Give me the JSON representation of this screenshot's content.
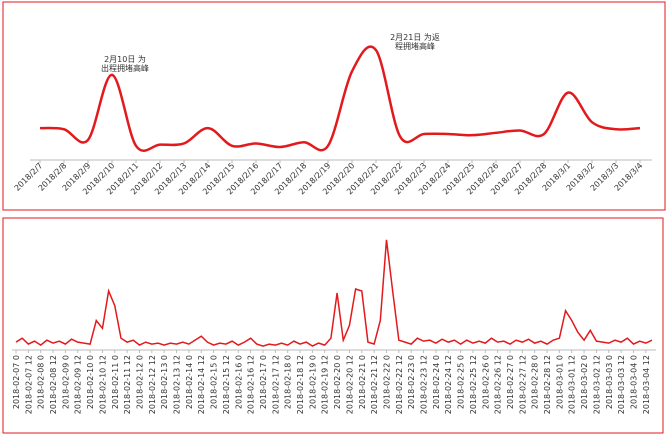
{
  "chart_data": [
    {
      "type": "line",
      "color": "#e31a1c",
      "categories": [
        "2018/2/7",
        "2018/2/8",
        "2018/2/9",
        "2018/2/10",
        "2018/2/11",
        "2018/2/12",
        "2018/2/13",
        "2018/2/14",
        "2018/2/15",
        "2018/2/16",
        "2018/2/17",
        "2018/2/18",
        "2018/2/19",
        "2018/2/20",
        "2018/2/21",
        "2018/2/22",
        "2018/2/23",
        "2018/2/24",
        "2018/2/25",
        "2018/2/26",
        "2018/2/27",
        "2018/2/28",
        "2018/3/1",
        "2018/3/2",
        "2018/3/3",
        "2018/3/4"
      ],
      "values": [
        27,
        26,
        17,
        72,
        12,
        13,
        14,
        27,
        12,
        14,
        11,
        15,
        12,
        75,
        93,
        20,
        22,
        22,
        21,
        23,
        25,
        22,
        57,
        32,
        26,
        27
      ],
      "ylim": [
        0,
        110
      ],
      "annotations": [
        {
          "lines": [
            "2月10日 为",
            "出程拥堵高峰"
          ]
        },
        {
          "lines": [
            "2月21日 为返",
            "程拥堵高峰"
          ]
        }
      ]
    },
    {
      "type": "line",
      "color": "#e31a1c",
      "categories": [
        "2018-02-07 0",
        null,
        "2018-02-07 12",
        null,
        "2018-02-08 0",
        null,
        "2018-02-08 12",
        null,
        "2018-02-09 0",
        null,
        "2018-02-09 12",
        null,
        "2018-02-10 0",
        null,
        "2018-02-10 12",
        null,
        "2018-02-11 0",
        null,
        "2018-02-11 12",
        null,
        "2018-02-12 0",
        null,
        "2018-02-12 12",
        null,
        "2018-02-13 0",
        null,
        "2018-02-13 12",
        null,
        "2018-02-14 0",
        null,
        "2018-02-14 12",
        null,
        "2018-02-15 0",
        null,
        "2018-02-15 12",
        null,
        "2018-02-16 0",
        null,
        "2018-02-16 12",
        null,
        "2018-02-17 0",
        null,
        "2018-02-17 12",
        null,
        "2018-02-18 0",
        null,
        "2018-02-18 12",
        null,
        "2018-02-19 0",
        null,
        "2018-02-19 12",
        null,
        "2018-02-20 0",
        null,
        "2018-02-20 12",
        null,
        "2018-02-21 0",
        null,
        "2018-02-21 12",
        null,
        "2018-02-22 0",
        null,
        "2018-02-22 12",
        null,
        "2018-02-23 0",
        null,
        "2018-02-23 12",
        null,
        "2018-02-24 0",
        null,
        "2018-02-24 12",
        null,
        "2018-02-25 0",
        null,
        "2018-02-25 12",
        null,
        "2018-02-26 0",
        null,
        "2018-02-26 12",
        null,
        "2018-02-27 0",
        null,
        "2018-02-27 12",
        null,
        "2018-02-28 0",
        null,
        "2018-02-28 12",
        null,
        "2018-03-01 0",
        null,
        "2018-03-01 12",
        null,
        "2018-03-02 0",
        null,
        "2018-03-02 12",
        null,
        "2018-03-03 0",
        null,
        "2018-03-03 12",
        null,
        "2018-03-04 0",
        null,
        "2018-03-04 12",
        null
      ],
      "values": [
        8,
        12,
        6,
        9,
        5,
        10,
        7,
        9,
        6,
        11,
        8,
        7,
        6,
        30,
        22,
        60,
        45,
        12,
        8,
        10,
        5,
        8,
        6,
        7,
        5,
        7,
        6,
        8,
        6,
        10,
        14,
        8,
        5,
        7,
        6,
        9,
        5,
        8,
        12,
        6,
        4,
        6,
        5,
        7,
        5,
        9,
        6,
        8,
        4,
        7,
        5,
        12,
        58,
        10,
        25,
        62,
        60,
        8,
        6,
        30,
        112,
        60,
        10,
        8,
        6,
        12,
        9,
        10,
        7,
        11,
        8,
        10,
        6,
        10,
        7,
        9,
        7,
        12,
        8,
        9,
        6,
        10,
        8,
        11,
        7,
        9,
        6,
        10,
        12,
        40,
        30,
        18,
        10,
        20,
        9,
        8,
        7,
        10,
        8,
        12,
        6,
        9,
        7,
        10
      ],
      "ylim": [
        0,
        120
      ]
    }
  ]
}
